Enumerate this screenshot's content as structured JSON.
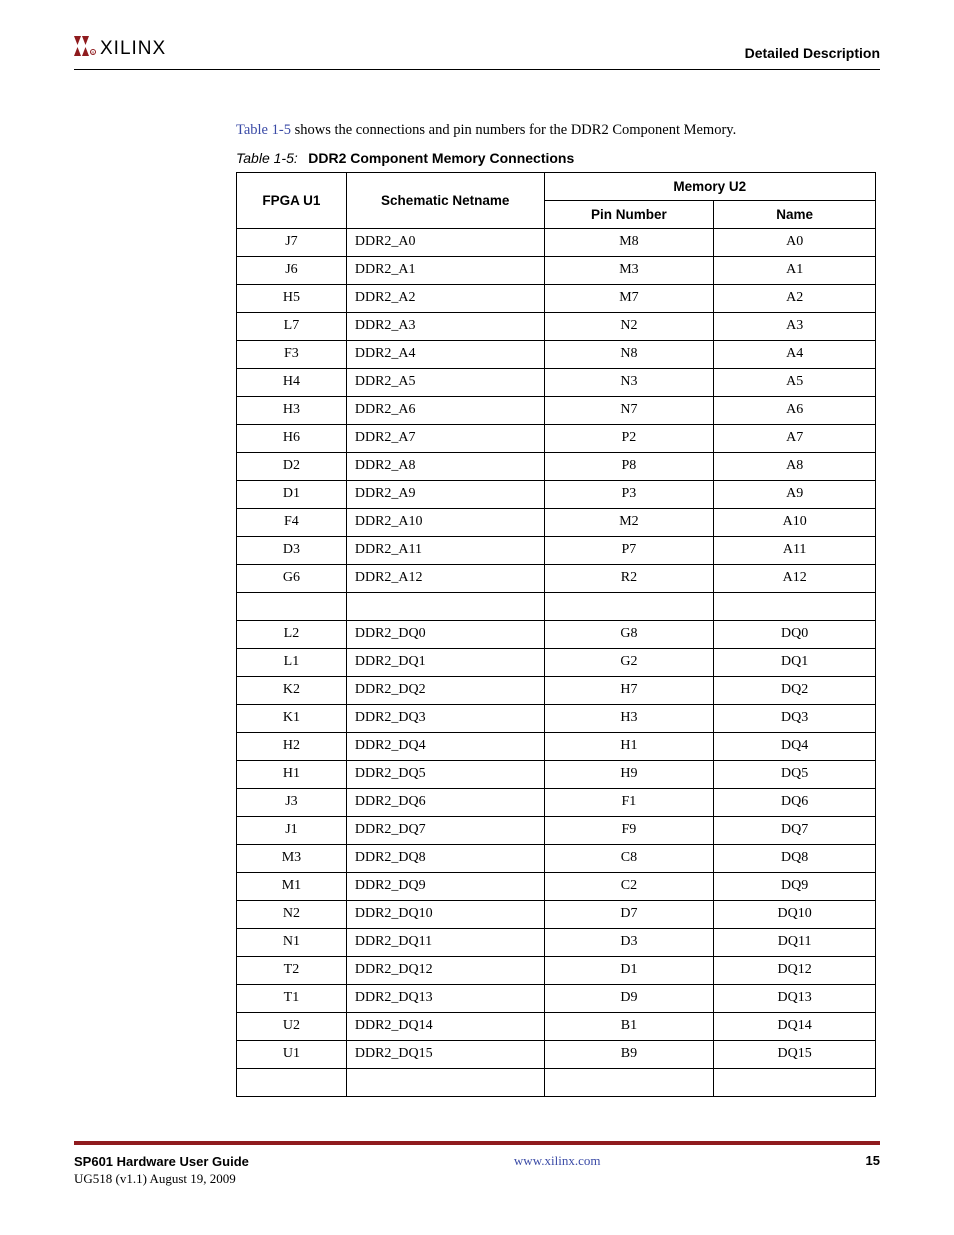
{
  "header": {
    "logo_text": "XILINX",
    "section_title": "Detailed Description"
  },
  "intro": {
    "ref": "Table 1-5",
    "rest": " shows the connections and pin numbers for the DDR2 Component Memory."
  },
  "caption": {
    "label": "Table 1-5:",
    "title": "DDR2 Component Memory Connections"
  },
  "table": {
    "headers": {
      "fpga": "FPGA U1",
      "schem": "Schematic Netname",
      "memory": "Memory U2",
      "pin": "Pin Number",
      "name": "Name"
    },
    "rows": [
      {
        "fpga": "J7",
        "schem": "DDR2_A0",
        "pin": "M8",
        "name": "A0"
      },
      {
        "fpga": "J6",
        "schem": "DDR2_A1",
        "pin": "M3",
        "name": "A1"
      },
      {
        "fpga": "H5",
        "schem": "DDR2_A2",
        "pin": "M7",
        "name": "A2"
      },
      {
        "fpga": "L7",
        "schem": "DDR2_A3",
        "pin": "N2",
        "name": "A3"
      },
      {
        "fpga": "F3",
        "schem": "DDR2_A4",
        "pin": "N8",
        "name": "A4"
      },
      {
        "fpga": "H4",
        "schem": "DDR2_A5",
        "pin": "N3",
        "name": "A5"
      },
      {
        "fpga": "H3",
        "schem": "DDR2_A6",
        "pin": "N7",
        "name": "A6"
      },
      {
        "fpga": "H6",
        "schem": "DDR2_A7",
        "pin": "P2",
        "name": "A7"
      },
      {
        "fpga": "D2",
        "schem": "DDR2_A8",
        "pin": "P8",
        "name": "A8"
      },
      {
        "fpga": "D1",
        "schem": "DDR2_A9",
        "pin": "P3",
        "name": "A9"
      },
      {
        "fpga": "F4",
        "schem": "DDR2_A10",
        "pin": "M2",
        "name": "A10"
      },
      {
        "fpga": "D3",
        "schem": "DDR2_A11",
        "pin": "P7",
        "name": "A11"
      },
      {
        "fpga": "G6",
        "schem": "DDR2_A12",
        "pin": "R2",
        "name": "A12"
      },
      {
        "empty": true
      },
      {
        "fpga": "L2",
        "schem": "DDR2_DQ0",
        "pin": "G8",
        "name": "DQ0"
      },
      {
        "fpga": "L1",
        "schem": "DDR2_DQ1",
        "pin": "G2",
        "name": "DQ1"
      },
      {
        "fpga": "K2",
        "schem": "DDR2_DQ2",
        "pin": "H7",
        "name": "DQ2"
      },
      {
        "fpga": "K1",
        "schem": "DDR2_DQ3",
        "pin": "H3",
        "name": "DQ3"
      },
      {
        "fpga": "H2",
        "schem": "DDR2_DQ4",
        "pin": "H1",
        "name": "DQ4"
      },
      {
        "fpga": "H1",
        "schem": "DDR2_DQ5",
        "pin": "H9",
        "name": "DQ5"
      },
      {
        "fpga": "J3",
        "schem": "DDR2_DQ6",
        "pin": "F1",
        "name": "DQ6"
      },
      {
        "fpga": "J1",
        "schem": "DDR2_DQ7",
        "pin": "F9",
        "name": "DQ7"
      },
      {
        "fpga": "M3",
        "schem": "DDR2_DQ8",
        "pin": "C8",
        "name": "DQ8"
      },
      {
        "fpga": "M1",
        "schem": "DDR2_DQ9",
        "pin": "C2",
        "name": "DQ9"
      },
      {
        "fpga": "N2",
        "schem": "DDR2_DQ10",
        "pin": "D7",
        "name": "DQ10"
      },
      {
        "fpga": "N1",
        "schem": "DDR2_DQ11",
        "pin": "D3",
        "name": "DQ11"
      },
      {
        "fpga": "T2",
        "schem": "DDR2_DQ12",
        "pin": "D1",
        "name": "DQ12"
      },
      {
        "fpga": "T1",
        "schem": "DDR2_DQ13",
        "pin": "D9",
        "name": "DQ13"
      },
      {
        "fpga": "U2",
        "schem": "DDR2_DQ14",
        "pin": "B1",
        "name": "DQ14"
      },
      {
        "fpga": "U1",
        "schem": "DDR2_DQ15",
        "pin": "B9",
        "name": "DQ15"
      },
      {
        "empty": true
      }
    ]
  },
  "footer": {
    "doc_title": "SP601 Hardware User Guide",
    "doc_sub": "UG518 (v1.1) August 19, 2009",
    "url_text": "www.xilinx.com",
    "page": "15"
  },
  "colors": {
    "link": "#3a4aa6",
    "rule": "#8f1b1e",
    "logo": "#8f1b1e"
  }
}
